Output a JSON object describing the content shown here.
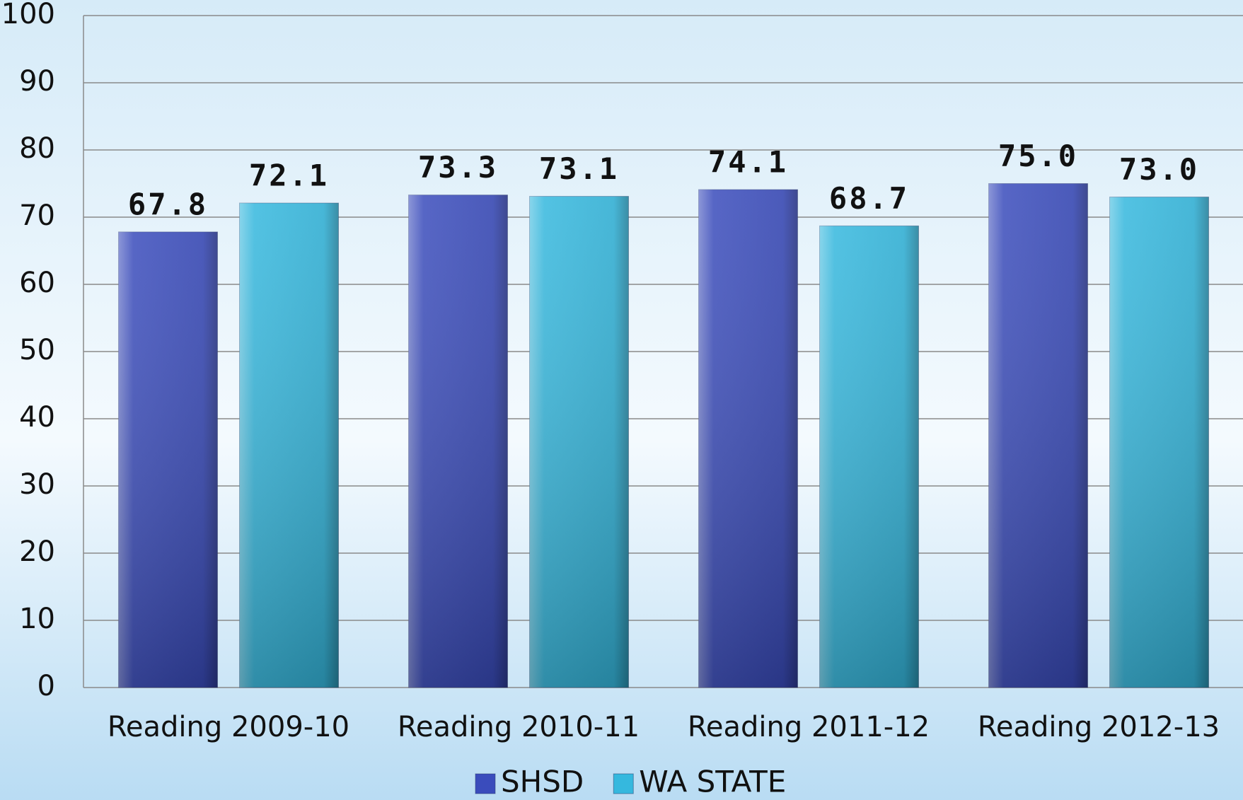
{
  "chart_data": {
    "type": "bar",
    "categories": [
      "Reading 2009-10",
      "Reading 2010-11",
      "Reading 2011-12",
      "Reading 2012-13"
    ],
    "series": [
      {
        "name": "SHSD",
        "color": "#3a4cbc",
        "values": [
          67.8,
          73.3,
          74.1,
          75
        ],
        "value_labels": [
          "67.8",
          "73.3",
          "74.1",
          "75.0"
        ]
      },
      {
        "name": "WA STATE",
        "color": "#35b8de",
        "values": [
          72.1,
          73.1,
          68.7,
          73
        ],
        "value_labels": [
          "72.1",
          "73.1",
          "68.7",
          "73.0"
        ]
      }
    ],
    "ylim": [
      0,
      100
    ],
    "yticks": [
      0,
      10,
      20,
      30,
      40,
      50,
      60,
      70,
      80,
      90,
      100
    ],
    "grid": true,
    "legend": "bottom"
  }
}
